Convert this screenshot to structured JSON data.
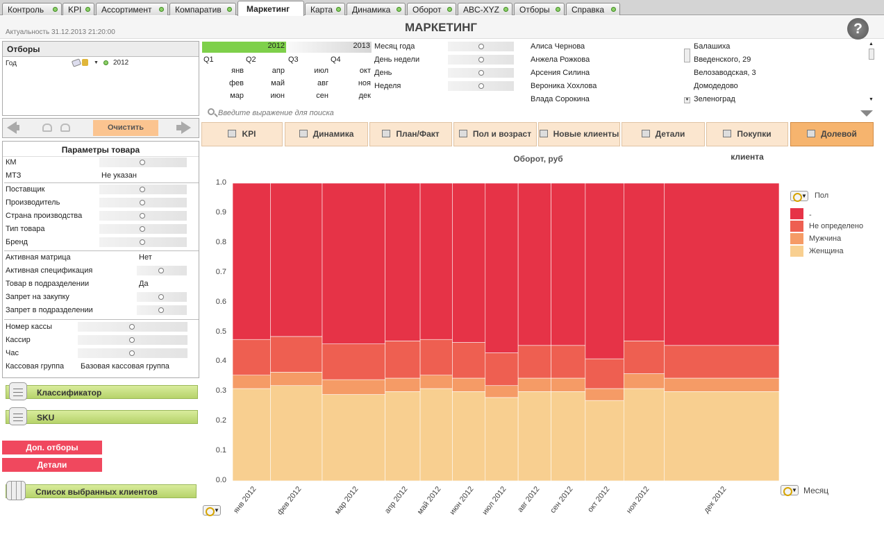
{
  "tabs": [
    "Контроль",
    "KPI",
    "Ассортимент",
    "Компаратив",
    "Маркетинг",
    "Карта",
    "Динамика",
    "Оборот",
    "ABC-XYZ",
    "Отборы",
    "Справка"
  ],
  "active_tab": "Маркетинг",
  "header": {
    "actual": "Актуальность 31.12.2013 21:20:00",
    "title": "МАРКЕТИНГ",
    "help": "?"
  },
  "filters": {
    "title": "Отборы",
    "year_label": "Год",
    "year_value": "2012"
  },
  "nav": {
    "clear_label": "Очистить"
  },
  "calendar": {
    "years": [
      "2012",
      "2013"
    ],
    "quarters": [
      "Q1",
      "Q2",
      "Q3",
      "Q4"
    ],
    "months": [
      [
        "янв",
        "фев",
        "мар"
      ],
      [
        "апр",
        "май",
        "июн"
      ],
      [
        "июл",
        "авг",
        "сен"
      ],
      [
        "окт",
        "ноя",
        "дек"
      ]
    ],
    "dropdowns": [
      "Месяц года",
      "День недели",
      "День",
      "Неделя"
    ],
    "search_placeholder": "Введите выражение для поиска"
  },
  "clients": [
    "Алиса Чернова",
    "Анжела Рожкова",
    "Арсения Силина",
    "Вероника Хохлова",
    "Влада Сорокина"
  ],
  "stores": [
    "Балашиха",
    "Введенского, 29",
    "Велозаводская, 3",
    "Домодедово",
    "Зеленоград"
  ],
  "params": {
    "title": "Параметры товара",
    "group1": [
      {
        "label": "КМ",
        "value": ""
      },
      {
        "label": "МТЗ",
        "value": "Не указан"
      }
    ],
    "group2": [
      {
        "label": "Поставщик",
        "value": ""
      },
      {
        "label": "Производитель",
        "value": ""
      },
      {
        "label": "Страна производства",
        "value": ""
      },
      {
        "label": "Тип товара",
        "value": ""
      },
      {
        "label": "Бренд",
        "value": ""
      }
    ],
    "group3": [
      {
        "label": "Активная матрица",
        "value": "Нет"
      },
      {
        "label": "Активная спецификация",
        "value": ""
      },
      {
        "label": "Товар в подразделении",
        "value": "Да"
      },
      {
        "label": "Запрет на закупку",
        "value": ""
      },
      {
        "label": "Запрет в подразделении",
        "value": ""
      }
    ],
    "group4": [
      {
        "label": "Номер кассы",
        "value": ""
      },
      {
        "label": "Кассир",
        "value": ""
      },
      {
        "label": "Час",
        "value": ""
      },
      {
        "label": "Кассовая группа",
        "value": "Базовая кассовая группа"
      }
    ]
  },
  "side_buttons": {
    "classifier": "Классификатор",
    "sku": "SKU",
    "extra_filters": "Доп. отборы",
    "details": "Детали",
    "selected_clients": "Список выбранных клиентов"
  },
  "main_tabs": [
    "KPI",
    "Динамика",
    "План/Факт",
    "Пол и возраст",
    "Новые клиенты",
    "Детали",
    "Покупки клиента",
    "Долевой"
  ],
  "active_main_tab": "Долевой",
  "dim_labels": {
    "legend_dim": "Пол",
    "x_dim": "Месяц"
  },
  "colors": {
    "series": [
      "#e63347",
      "#ee5f51",
      "#f59b66",
      "#f8cf90"
    ]
  },
  "chart_data": {
    "type": "bar",
    "title": "Оборот, руб",
    "ylim": [
      0,
      1
    ],
    "yticks": [
      "0.0",
      "0.1",
      "0.2",
      "0.3",
      "0.4",
      "0.5",
      "0.6",
      "0.7",
      "0.8",
      "0.9",
      "1.0"
    ],
    "categories": [
      "янв 2012",
      "фев 2012",
      "мар 2012",
      "апр 2012",
      "май 2012",
      "июн 2012",
      "июл 2012",
      "авг 2012",
      "сен 2012",
      "окт 2012",
      "ноя 2012",
      "дек 2012"
    ],
    "widths": [
      0.054,
      0.074,
      0.09,
      0.05,
      0.046,
      0.047,
      0.047,
      0.047,
      0.049,
      0.055,
      0.058,
      0.164
    ],
    "series": [
      {
        "name": "Женщина",
        "values": [
          0.31,
          0.32,
          0.29,
          0.3,
          0.31,
          0.3,
          0.28,
          0.3,
          0.3,
          0.27,
          0.31,
          0.3
        ]
      },
      {
        "name": "Мужчина",
        "values": [
          0.045,
          0.045,
          0.05,
          0.045,
          0.045,
          0.045,
          0.04,
          0.045,
          0.045,
          0.04,
          0.05,
          0.045
        ]
      },
      {
        "name": "Не определено",
        "values": [
          0.12,
          0.12,
          0.12,
          0.125,
          0.12,
          0.12,
          0.11,
          0.11,
          0.11,
          0.1,
          0.11,
          0.11
        ]
      },
      {
        "name": "-",
        "values": [
          0.525,
          0.515,
          0.54,
          0.53,
          0.525,
          0.535,
          0.57,
          0.545,
          0.545,
          0.59,
          0.53,
          0.545
        ]
      }
    ],
    "legend": [
      "-",
      "Не определено",
      "Мужчина",
      "Женщина"
    ],
    "legend_placement": "right"
  }
}
